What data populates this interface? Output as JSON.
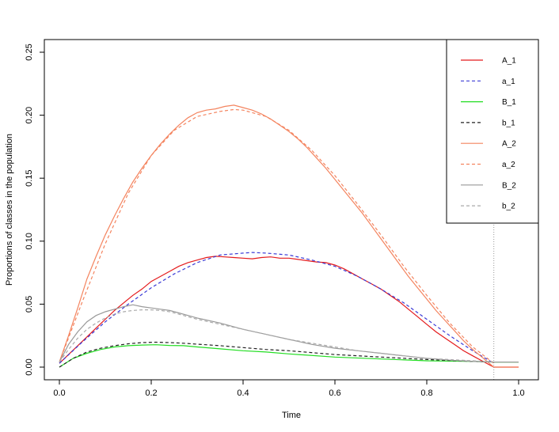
{
  "chart_data": {
    "type": "line",
    "title": "",
    "xlabel": "Time",
    "ylabel": "Proportions of classes in the population",
    "xlim": [
      0,
      1
    ],
    "ylim": [
      0,
      0.25
    ],
    "x_ticks": [
      {
        "value": 0.0,
        "label": "0.0"
      },
      {
        "value": 0.2,
        "label": "0.2"
      },
      {
        "value": 0.4,
        "label": "0.4"
      },
      {
        "value": 0.6,
        "label": "0.6"
      },
      {
        "value": 0.8,
        "label": "0.8"
      },
      {
        "value": 1.0,
        "label": "1.0"
      }
    ],
    "y_ticks": [
      {
        "value": 0.0,
        "label": "0.00"
      },
      {
        "value": 0.05,
        "label": "0.05"
      },
      {
        "value": 0.1,
        "label": "0.10"
      },
      {
        "value": 0.15,
        "label": "0.15"
      },
      {
        "value": 0.2,
        "label": "0.20"
      },
      {
        "value": 0.25,
        "label": "0.25"
      }
    ],
    "vline_x": 0.946,
    "vline_color": "#999999",
    "legend_position": "top-right",
    "grid": false,
    "series": [
      {
        "name": "A_1",
        "color": "#e41a1c",
        "dashed": false,
        "x": [
          0,
          0.02,
          0.04,
          0.06,
          0.08,
          0.1,
          0.12,
          0.14,
          0.16,
          0.18,
          0.2,
          0.22,
          0.24,
          0.26,
          0.28,
          0.3,
          0.32,
          0.34,
          0.36,
          0.38,
          0.4,
          0.42,
          0.44,
          0.46,
          0.48,
          0.5,
          0.52,
          0.54,
          0.56,
          0.58,
          0.6,
          0.62,
          0.64,
          0.66,
          0.68,
          0.7,
          0.72,
          0.74,
          0.76,
          0.78,
          0.8,
          0.82,
          0.84,
          0.86,
          0.88,
          0.9,
          0.92,
          0.946,
          1.0
        ],
        "y": [
          0.003,
          0.01,
          0.017,
          0.024,
          0.031,
          0.038,
          0.045,
          0.051,
          0.057,
          0.062,
          0.068,
          0.072,
          0.076,
          0.08,
          0.083,
          0.085,
          0.087,
          0.088,
          0.0875,
          0.087,
          0.0865,
          0.086,
          0.087,
          0.0875,
          0.0865,
          0.0865,
          0.0855,
          0.0845,
          0.0835,
          0.083,
          0.081,
          0.078,
          0.074,
          0.07,
          0.066,
          0.062,
          0.057,
          0.052,
          0.046,
          0.04,
          0.034,
          0.028,
          0.023,
          0.018,
          0.013,
          0.009,
          0.005,
          0.0,
          0.0
        ]
      },
      {
        "name": "a_1",
        "color": "#3b3bd6",
        "dashed": true,
        "x": [
          0,
          0.05,
          0.1,
          0.15,
          0.2,
          0.25,
          0.3,
          0.35,
          0.4,
          0.42,
          0.45,
          0.5,
          0.55,
          0.6,
          0.65,
          0.7,
          0.75,
          0.8,
          0.85,
          0.9,
          0.946
        ],
        "y": [
          0.003,
          0.02,
          0.036,
          0.05,
          0.063,
          0.074,
          0.083,
          0.089,
          0.0905,
          0.091,
          0.0905,
          0.089,
          0.085,
          0.08,
          0.072,
          0.062,
          0.051,
          0.038,
          0.025,
          0.013,
          0.003
        ]
      },
      {
        "name": "B_1",
        "color": "#22dd22",
        "dashed": false,
        "x": [
          0,
          0.03,
          0.06,
          0.09,
          0.12,
          0.15,
          0.18,
          0.21,
          0.24,
          0.27,
          0.3,
          0.35,
          0.4,
          0.45,
          0.5,
          0.6,
          0.7,
          0.8,
          0.9,
          0.946,
          1.0
        ],
        "y": [
          0.0,
          0.007,
          0.011,
          0.014,
          0.016,
          0.017,
          0.0175,
          0.0178,
          0.0172,
          0.017,
          0.016,
          0.0145,
          0.013,
          0.012,
          0.0105,
          0.008,
          0.0065,
          0.005,
          0.0045,
          0.004,
          0.004
        ]
      },
      {
        "name": "b_1",
        "color": "#222222",
        "dashed": true,
        "x": [
          0,
          0.03,
          0.06,
          0.09,
          0.12,
          0.15,
          0.18,
          0.21,
          0.24,
          0.27,
          0.3,
          0.35,
          0.4,
          0.45,
          0.5,
          0.6,
          0.7,
          0.8,
          0.9,
          0.946
        ],
        "y": [
          0.0,
          0.007,
          0.012,
          0.015,
          0.017,
          0.0185,
          0.0195,
          0.0198,
          0.0195,
          0.019,
          0.0182,
          0.017,
          0.0155,
          0.014,
          0.013,
          0.01,
          0.008,
          0.006,
          0.0045,
          0.004
        ]
      },
      {
        "name": "A_2",
        "color": "#f4845f",
        "dashed": false,
        "x": [
          0,
          0.02,
          0.04,
          0.06,
          0.08,
          0.1,
          0.12,
          0.14,
          0.16,
          0.18,
          0.2,
          0.22,
          0.24,
          0.26,
          0.28,
          0.3,
          0.32,
          0.34,
          0.36,
          0.38,
          0.4,
          0.42,
          0.44,
          0.46,
          0.48,
          0.5,
          0.52,
          0.54,
          0.56,
          0.58,
          0.6,
          0.62,
          0.64,
          0.66,
          0.68,
          0.7,
          0.72,
          0.74,
          0.76,
          0.78,
          0.8,
          0.82,
          0.84,
          0.86,
          0.88,
          0.9,
          0.92,
          0.946,
          1.0
        ],
        "y": [
          0.004,
          0.025,
          0.047,
          0.07,
          0.088,
          0.105,
          0.12,
          0.134,
          0.147,
          0.158,
          0.168,
          0.177,
          0.185,
          0.192,
          0.198,
          0.202,
          0.204,
          0.205,
          0.207,
          0.208,
          0.206,
          0.204,
          0.201,
          0.197,
          0.192,
          0.187,
          0.181,
          0.174,
          0.166,
          0.158,
          0.149,
          0.14,
          0.131,
          0.122,
          0.112,
          0.102,
          0.092,
          0.082,
          0.072,
          0.063,
          0.054,
          0.045,
          0.037,
          0.029,
          0.021,
          0.014,
          0.008,
          0.0,
          0.0
        ]
      },
      {
        "name": "a_2",
        "color": "#f4845f",
        "dashed": true,
        "x": [
          0,
          0.05,
          0.1,
          0.15,
          0.2,
          0.25,
          0.3,
          0.35,
          0.38,
          0.4,
          0.45,
          0.5,
          0.55,
          0.6,
          0.65,
          0.7,
          0.75,
          0.8,
          0.85,
          0.9,
          0.946
        ],
        "y": [
          0.004,
          0.052,
          0.098,
          0.138,
          0.168,
          0.188,
          0.199,
          0.203,
          0.2045,
          0.204,
          0.199,
          0.188,
          0.172,
          0.152,
          0.129,
          0.105,
          0.08,
          0.057,
          0.035,
          0.016,
          0.003
        ]
      },
      {
        "name": "B_2",
        "color": "#999999",
        "dashed": false,
        "x": [
          0,
          0.02,
          0.04,
          0.06,
          0.08,
          0.1,
          0.12,
          0.14,
          0.16,
          0.18,
          0.2,
          0.22,
          0.24,
          0.26,
          0.28,
          0.3,
          0.35,
          0.4,
          0.45,
          0.5,
          0.55,
          0.6,
          0.65,
          0.7,
          0.75,
          0.8,
          0.85,
          0.9,
          0.946,
          1.0
        ],
        "y": [
          0.004,
          0.018,
          0.028,
          0.036,
          0.041,
          0.044,
          0.046,
          0.048,
          0.0495,
          0.048,
          0.047,
          0.046,
          0.045,
          0.043,
          0.041,
          0.039,
          0.035,
          0.03,
          0.026,
          0.022,
          0.018,
          0.015,
          0.013,
          0.011,
          0.009,
          0.007,
          0.0055,
          0.0045,
          0.004,
          0.004
        ]
      },
      {
        "name": "b_2",
        "color": "#aaaaaa",
        "dashed": true,
        "x": [
          0,
          0.02,
          0.04,
          0.06,
          0.08,
          0.1,
          0.12,
          0.14,
          0.16,
          0.18,
          0.2,
          0.22,
          0.24,
          0.26,
          0.28,
          0.3,
          0.35,
          0.4,
          0.45,
          0.5,
          0.55,
          0.6,
          0.65,
          0.7,
          0.75,
          0.8,
          0.85,
          0.9,
          0.946
        ],
        "y": [
          0.004,
          0.014,
          0.023,
          0.03,
          0.035,
          0.039,
          0.042,
          0.044,
          0.045,
          0.0455,
          0.0455,
          0.045,
          0.044,
          0.042,
          0.04,
          0.038,
          0.034,
          0.03,
          0.026,
          0.022,
          0.019,
          0.016,
          0.013,
          0.011,
          0.009,
          0.007,
          0.006,
          0.005,
          0.004
        ]
      }
    ]
  }
}
